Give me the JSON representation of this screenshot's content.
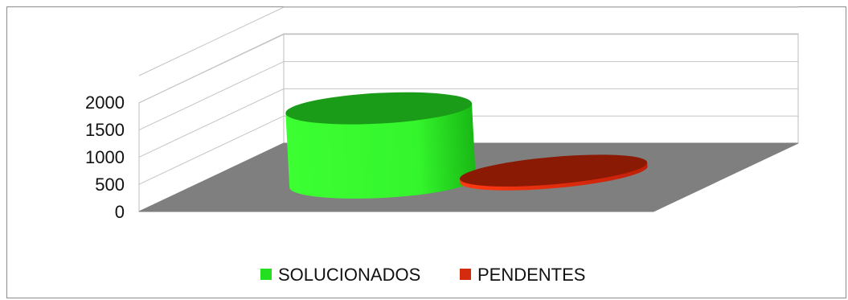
{
  "chart_data": {
    "type": "bar",
    "style": "3d-cylinder",
    "categories": [
      "SOLUCIONADOS",
      "PENDENTES"
    ],
    "values": [
      1900,
      100
    ],
    "colors": [
      "#22e01f",
      "#d42a0d"
    ],
    "yticks": [
      "0",
      "500",
      "1000",
      "1500",
      "2000"
    ],
    "ylim": [
      0,
      2500
    ],
    "grid": true,
    "legend_placement": "bottom-center"
  },
  "legend": {
    "items": [
      {
        "label": "SOLUCIONADOS",
        "color": "#22e01f"
      },
      {
        "label": "PENDENTES",
        "color": "#d42a0d"
      }
    ]
  }
}
